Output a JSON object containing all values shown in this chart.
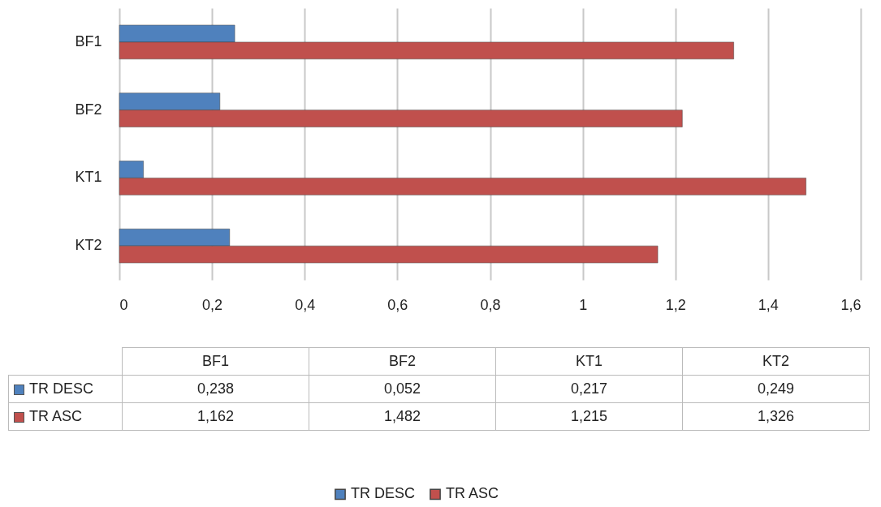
{
  "chart_data": [
    {
      "type": "bar",
      "orientation": "horizontal",
      "categories": [
        "BF1",
        "BF2",
        "KT1",
        "KT2"
      ],
      "series": [
        {
          "name": "TR DESC",
          "color": "#4f81bd",
          "values": [
            0.249,
            0.217,
            0.052,
            0.238
          ]
        },
        {
          "name": "TR ASC",
          "color": "#c0504d",
          "values": [
            1.326,
            1.215,
            1.482,
            1.162
          ]
        }
      ],
      "xlim": [
        0,
        1.6
      ],
      "xticks": [
        0,
        {
          "value": 0.2,
          "label": "0,2"
        },
        {
          "value": 0.4,
          "label": "0,4"
        },
        {
          "value": 0.6,
          "label": "0,6"
        },
        {
          "value": 0.8,
          "label": "0,8"
        },
        1,
        {
          "value": 1.2,
          "label": "1,2"
        },
        {
          "value": 1.4,
          "label": "1,4"
        },
        {
          "value": 1.6,
          "label": "1,6"
        }
      ],
      "grid": "x",
      "legend": "bottom"
    },
    {
      "type": "other",
      "categories": [
        "BF1",
        "BF2",
        "KT1",
        "KT2"
      ],
      "series": [
        {
          "name": "TR DESC",
          "color": "#4f81bd",
          "values": [
            0.238,
            0.052,
            0.217,
            0.249
          ],
          "value_labels": [
            "0,238",
            "0,052",
            "0,217",
            "0,249"
          ]
        },
        {
          "name": "TR ASC",
          "color": "#c0504d",
          "values": [
            1.162,
            1.482,
            1.215,
            1.326
          ],
          "value_labels": [
            "1,162",
            "1,482",
            "1,215",
            "1,326"
          ]
        }
      ]
    }
  ]
}
